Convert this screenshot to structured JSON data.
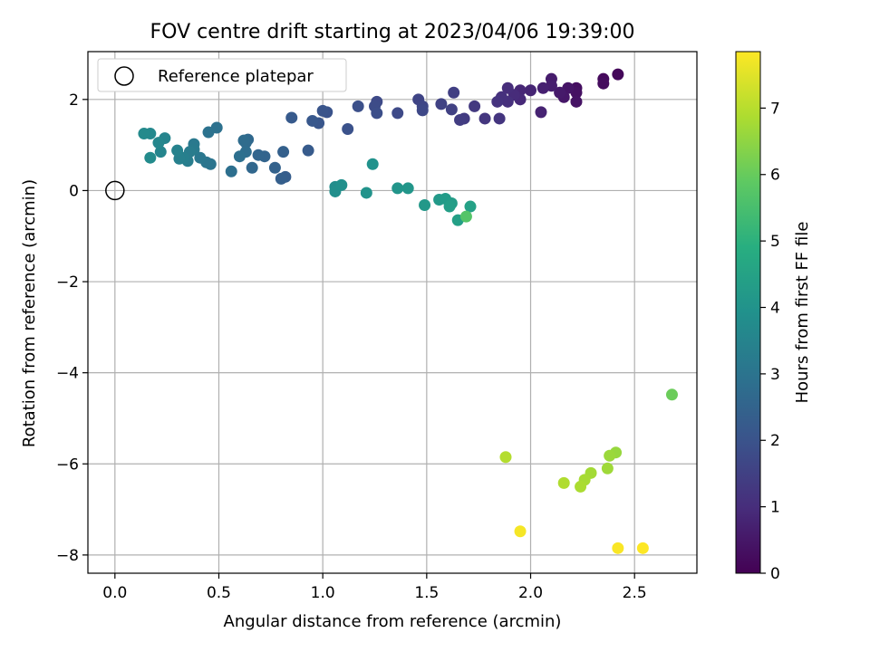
{
  "chart_data": {
    "type": "scatter",
    "title": "FOV centre drift starting at 2023/04/06 19:39:00",
    "xlabel": "Angular distance from reference (arcmin)",
    "ylabel": "Rotation from reference (arcmin)",
    "xlim": [
      -0.13,
      2.8
    ],
    "ylim": [
      -8.4,
      3.05
    ],
    "x_ticks": [
      0.0,
      0.5,
      1.0,
      1.5,
      2.0,
      2.5
    ],
    "x_tick_labels": [
      "0.0",
      "0.5",
      "1.0",
      "1.5",
      "2.0",
      "2.5"
    ],
    "y_ticks": [
      2,
      0,
      -2,
      -4,
      -6,
      -8
    ],
    "y_tick_labels": [
      "2",
      "0",
      "−2",
      "−4",
      "−6",
      "−8"
    ],
    "grid": true,
    "legend": {
      "placement": "top-left",
      "label": "Reference platepar"
    },
    "reference_point": [
      0,
      0
    ],
    "colorbar": {
      "label": "Hours from first FF file",
      "range": [
        0,
        7.85
      ],
      "ticks": [
        0,
        1,
        2,
        3,
        4,
        5,
        6,
        7
      ],
      "tick_labels": [
        "0",
        "1",
        "2",
        "3",
        "4",
        "5",
        "6",
        "7"
      ],
      "colormap": "viridis"
    },
    "points": [
      [
        2.42,
        2.55,
        0.15
      ],
      [
        2.35,
        2.45,
        0.2
      ],
      [
        2.35,
        2.35,
        0.25
      ],
      [
        2.22,
        2.25,
        0.3
      ],
      [
        2.22,
        2.15,
        0.35
      ],
      [
        2.22,
        1.95,
        0.4
      ],
      [
        2.18,
        2.25,
        0.45
      ],
      [
        2.16,
        2.05,
        0.5
      ],
      [
        2.14,
        2.15,
        0.55
      ],
      [
        2.1,
        2.45,
        0.6
      ],
      [
        2.1,
        2.3,
        0.65
      ],
      [
        2.06,
        2.25,
        0.7
      ],
      [
        2.05,
        1.72,
        0.75
      ],
      [
        2.0,
        2.2,
        0.8
      ],
      [
        1.95,
        2.2,
        0.85
      ],
      [
        1.95,
        2.0,
        0.9
      ],
      [
        1.92,
        2.1,
        0.95
      ],
      [
        1.89,
        2.25,
        1.0
      ],
      [
        1.89,
        1.95,
        1.05
      ],
      [
        1.86,
        2.05,
        1.1
      ],
      [
        1.84,
        1.95,
        1.15
      ],
      [
        1.85,
        1.58,
        1.2
      ],
      [
        1.78,
        1.58,
        1.25
      ],
      [
        1.73,
        1.85,
        1.3
      ],
      [
        1.68,
        1.58,
        1.35
      ],
      [
        1.66,
        1.55,
        1.4
      ],
      [
        1.63,
        2.15,
        1.45
      ],
      [
        1.62,
        1.78,
        1.5
      ],
      [
        1.57,
        1.9,
        1.55
      ],
      [
        1.46,
        2.0,
        1.6
      ],
      [
        1.48,
        1.85,
        1.65
      ],
      [
        1.48,
        1.76,
        1.7
      ],
      [
        1.36,
        1.7,
        1.75
      ],
      [
        1.26,
        1.95,
        1.75
      ],
      [
        1.25,
        1.85,
        1.8
      ],
      [
        1.26,
        1.7,
        1.85
      ],
      [
        1.17,
        1.85,
        1.9
      ],
      [
        1.12,
        1.35,
        1.95
      ],
      [
        1.02,
        1.72,
        2.0
      ],
      [
        1.0,
        1.75,
        2.05
      ],
      [
        0.98,
        1.48,
        2.1
      ],
      [
        0.95,
        1.53,
        2.15
      ],
      [
        0.85,
        1.6,
        2.2
      ],
      [
        0.93,
        0.88,
        2.25
      ],
      [
        0.82,
        0.3,
        2.3
      ],
      [
        0.8,
        0.26,
        2.35
      ],
      [
        0.81,
        0.85,
        2.4
      ],
      [
        0.77,
        0.5,
        2.45
      ],
      [
        0.72,
        0.75,
        2.5
      ],
      [
        0.69,
        0.78,
        2.55
      ],
      [
        0.66,
        0.5,
        2.6
      ],
      [
        0.64,
        1.12,
        2.65
      ],
      [
        0.63,
        1.05,
        2.7
      ],
      [
        0.62,
        1.1,
        2.75
      ],
      [
        0.63,
        0.85,
        2.8
      ],
      [
        0.6,
        0.75,
        2.85
      ],
      [
        0.56,
        0.42,
        2.85
      ],
      [
        0.49,
        1.38,
        2.9
      ],
      [
        0.45,
        1.28,
        2.95
      ],
      [
        0.46,
        0.58,
        3.0
      ],
      [
        0.44,
        0.62,
        3.05
      ],
      [
        0.41,
        0.72,
        3.1
      ],
      [
        0.38,
        1.02,
        3.15
      ],
      [
        0.38,
        0.9,
        3.2
      ],
      [
        0.36,
        0.85,
        3.25
      ],
      [
        0.35,
        0.65,
        3.3
      ],
      [
        0.33,
        0.72,
        3.35
      ],
      [
        0.31,
        0.7,
        3.4
      ],
      [
        0.3,
        0.88,
        3.45
      ],
      [
        0.24,
        1.15,
        3.5
      ],
      [
        0.22,
        0.85,
        3.55
      ],
      [
        0.21,
        1.05,
        3.6
      ],
      [
        0.17,
        1.25,
        3.65
      ],
      [
        0.14,
        1.25,
        3.7
      ],
      [
        0.17,
        0.72,
        3.75
      ],
      [
        1.06,
        0.08,
        3.8
      ],
      [
        1.06,
        -0.02,
        3.85
      ],
      [
        1.09,
        0.12,
        3.9
      ],
      [
        1.24,
        0.58,
        3.95
      ],
      [
        1.21,
        -0.05,
        4.0
      ],
      [
        1.36,
        0.05,
        4.05
      ],
      [
        1.41,
        0.05,
        4.1
      ],
      [
        1.49,
        -0.32,
        4.15
      ],
      [
        1.56,
        -0.2,
        4.2
      ],
      [
        1.59,
        -0.18,
        4.25
      ],
      [
        1.62,
        -0.28,
        4.3
      ],
      [
        1.61,
        -0.35,
        4.35
      ],
      [
        1.65,
        -0.65,
        4.4
      ],
      [
        1.71,
        -0.35,
        4.45
      ],
      [
        1.69,
        -0.57,
        5.7
      ],
      [
        2.68,
        -4.48,
        6.05
      ],
      [
        2.41,
        -5.75,
        6.6
      ],
      [
        2.38,
        -5.82,
        6.65
      ],
      [
        2.37,
        -6.1,
        6.7
      ],
      [
        2.29,
        -6.2,
        6.75
      ],
      [
        2.26,
        -6.35,
        6.8
      ],
      [
        2.24,
        -6.5,
        6.85
      ],
      [
        2.16,
        -6.42,
        6.9
      ],
      [
        1.88,
        -5.85,
        6.95
      ],
      [
        1.95,
        -7.48,
        7.75
      ],
      [
        2.42,
        -7.85,
        7.8
      ],
      [
        2.54,
        -7.85,
        7.85
      ]
    ]
  }
}
